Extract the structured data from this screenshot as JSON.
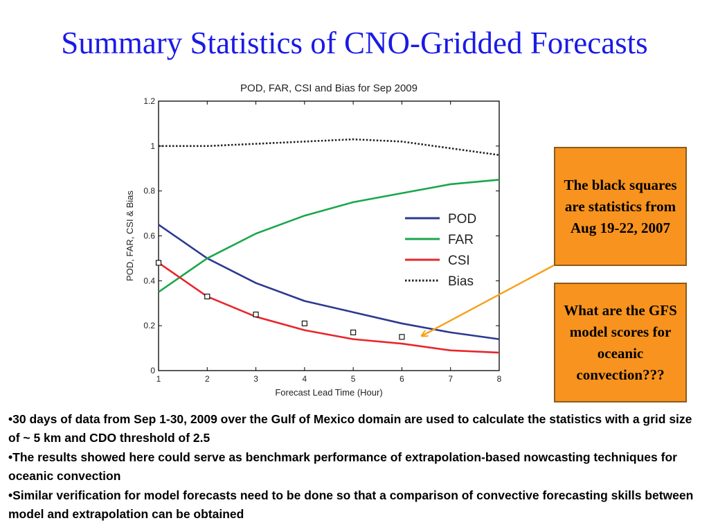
{
  "slide": {
    "title": "Summary Statistics of CNO-Gridded Forecasts"
  },
  "callouts": [
    "The black squares are statistics from Aug 19-22, 2007",
    "What are the GFS model scores for oceanic convection???"
  ],
  "bullets": [
    "•30 days of data from Sep 1-30, 2009 over the Gulf of Mexico domain are used to calculate the statistics with a grid size of ~ 5 km and CDO threshold of 2.5",
    "•The results showed here could serve as benchmark performance of extrapolation-based nowcasting techniques for oceanic convection",
    "•Similar verification for model forecasts need to be done so that a comparison of convective forecasting skills between model and extrapolation can be obtained"
  ],
  "colors": {
    "title": "#1a1ae6",
    "callout_fill": "#f7931e",
    "arrow": "#f7a11a"
  },
  "chart_data": {
    "type": "line",
    "title": "POD, FAR, CSI and Bias for Sep 2009",
    "xlabel": "Forecast Lead Time (Hour)",
    "ylabel": "POD, FAR, CSI & Bias",
    "xlim": [
      1,
      8
    ],
    "ylim": [
      0,
      1.2
    ],
    "xticks": [
      "1",
      "2",
      "3",
      "4",
      "5",
      "6",
      "7",
      "8"
    ],
    "yticks": [
      "0",
      "0.2",
      "0.4",
      "0.6",
      "0.8",
      "1",
      "1.2"
    ],
    "grid": false,
    "legend_position": "right",
    "x": [
      1,
      2,
      3,
      4,
      5,
      6,
      7,
      8
    ],
    "series": [
      {
        "name": "POD",
        "color": "#2b3990",
        "style": "solid",
        "values": [
          0.65,
          0.5,
          0.39,
          0.31,
          0.26,
          0.21,
          0.17,
          0.14
        ]
      },
      {
        "name": "FAR",
        "color": "#1aa64a",
        "style": "solid",
        "values": [
          0.35,
          0.5,
          0.61,
          0.69,
          0.75,
          0.79,
          0.83,
          0.85
        ]
      },
      {
        "name": "CSI",
        "color": "#e8262b",
        "style": "solid",
        "values": [
          0.48,
          0.33,
          0.24,
          0.18,
          0.14,
          0.12,
          0.09,
          0.08
        ]
      },
      {
        "name": "Bias",
        "color": "#222222",
        "style": "dotted",
        "values": [
          1.0,
          1.0,
          1.01,
          1.02,
          1.03,
          1.02,
          0.99,
          0.96
        ]
      }
    ],
    "markers": {
      "shape": "square",
      "x": [
        1,
        2,
        3,
        4,
        5,
        6
      ],
      "values": [
        0.48,
        0.33,
        0.25,
        0.21,
        0.17,
        0.15
      ]
    }
  }
}
